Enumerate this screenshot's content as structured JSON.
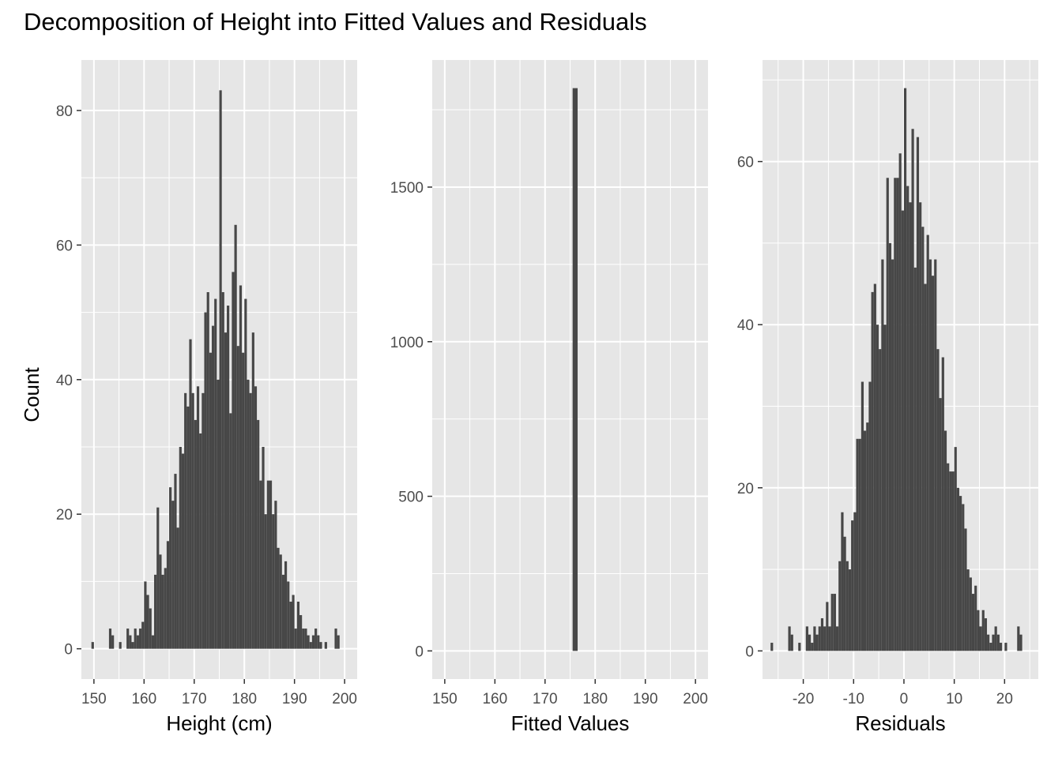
{
  "title": "Decomposition of Height into Fitted Values and Residuals",
  "colors": {
    "panel_background": "#e6e6e6",
    "grid_major": "#ffffff",
    "bar_fill": "#474747",
    "tick_text": "#4d4d4d"
  },
  "chart_data": [
    {
      "type": "bar",
      "subtype": "histogram",
      "xlabel": "Height (cm)",
      "ylabel": "Count",
      "xlim": [
        147.5,
        202.5
      ],
      "ylim": [
        -4.5,
        87.5
      ],
      "xticks": [
        150,
        160,
        170,
        180,
        190,
        200
      ],
      "yticks": [
        0,
        20,
        40,
        60,
        80
      ],
      "bin_width": 0.5,
      "bins": [
        [
          149.5,
          1
        ],
        [
          153.0,
          3
        ],
        [
          153.5,
          2
        ],
        [
          155.0,
          1
        ],
        [
          156.5,
          3
        ],
        [
          157.0,
          2
        ],
        [
          157.5,
          1
        ],
        [
          158.0,
          3
        ],
        [
          158.5,
          2
        ],
        [
          159.0,
          3
        ],
        [
          159.5,
          4
        ],
        [
          160.0,
          10
        ],
        [
          160.5,
          8
        ],
        [
          161.0,
          6
        ],
        [
          161.5,
          2
        ],
        [
          162.0,
          11
        ],
        [
          162.5,
          21
        ],
        [
          163.0,
          14
        ],
        [
          163.5,
          11
        ],
        [
          164.0,
          12
        ],
        [
          164.5,
          16
        ],
        [
          165.0,
          24
        ],
        [
          165.5,
          22
        ],
        [
          166.0,
          26
        ],
        [
          166.5,
          18
        ],
        [
          167.0,
          30
        ],
        [
          167.5,
          29
        ],
        [
          168.0,
          38
        ],
        [
          168.5,
          36
        ],
        [
          169.0,
          46
        ],
        [
          169.5,
          38
        ],
        [
          170.0,
          34
        ],
        [
          170.5,
          39
        ],
        [
          171.0,
          32
        ],
        [
          171.5,
          38
        ],
        [
          172.0,
          50
        ],
        [
          172.5,
          53
        ],
        [
          173.0,
          44
        ],
        [
          173.5,
          48
        ],
        [
          174.0,
          52
        ],
        [
          174.5,
          40
        ],
        [
          175.0,
          83
        ],
        [
          175.5,
          53
        ],
        [
          176.0,
          47
        ],
        [
          176.5,
          51
        ],
        [
          177.0,
          35
        ],
        [
          177.5,
          56
        ],
        [
          178.0,
          63
        ],
        [
          178.5,
          45
        ],
        [
          179.0,
          54
        ],
        [
          179.5,
          44
        ],
        [
          180.0,
          52
        ],
        [
          180.5,
          40
        ],
        [
          181.0,
          38
        ],
        [
          181.5,
          47
        ],
        [
          182.0,
          39
        ],
        [
          182.5,
          34
        ],
        [
          183.0,
          25
        ],
        [
          183.5,
          30
        ],
        [
          184.0,
          20
        ],
        [
          184.5,
          25
        ],
        [
          185.0,
          25
        ],
        [
          185.5,
          20
        ],
        [
          186.0,
          22
        ],
        [
          186.5,
          15
        ],
        [
          187.0,
          14
        ],
        [
          187.5,
          11
        ],
        [
          188.0,
          13
        ],
        [
          188.5,
          10
        ],
        [
          189.0,
          7
        ],
        [
          189.5,
          8
        ],
        [
          190.0,
          3
        ],
        [
          190.5,
          7
        ],
        [
          191.0,
          5
        ],
        [
          191.5,
          3
        ],
        [
          192.0,
          3
        ],
        [
          192.5,
          2
        ],
        [
          193.0,
          1
        ],
        [
          193.5,
          2
        ],
        [
          194.0,
          3
        ],
        [
          194.5,
          2
        ],
        [
          195.0,
          1
        ],
        [
          196.0,
          1
        ],
        [
          198.0,
          3
        ],
        [
          198.5,
          2
        ]
      ]
    },
    {
      "type": "bar",
      "subtype": "histogram",
      "xlabel": "Fitted Values",
      "ylabel": "",
      "xlim": [
        147.5,
        202.5
      ],
      "ylim": [
        -91,
        1911
      ],
      "xticks": [
        150,
        160,
        170,
        180,
        190,
        200
      ],
      "yticks": [
        0,
        500,
        1000,
        1500
      ],
      "bin_width": 1.0,
      "bins": [
        [
          175.5,
          1820
        ]
      ]
    },
    {
      "type": "bar",
      "subtype": "histogram",
      "xlabel": "Residuals",
      "ylabel": "",
      "xlim": [
        -28.1,
        26.7
      ],
      "ylim": [
        -3.45,
        72.45
      ],
      "xticks": [
        -20,
        -10,
        0,
        10,
        20
      ],
      "tick_labels": [
        "-20",
        "-10",
        "0",
        "10",
        "20"
      ],
      "yticks": [
        0,
        20,
        40,
        60
      ],
      "bin_width": 0.5,
      "bins": [
        [
          -26.5,
          1
        ],
        [
          -23.0,
          3
        ],
        [
          -22.5,
          2
        ],
        [
          -21.0,
          1
        ],
        [
          -19.5,
          3
        ],
        [
          -19.0,
          2
        ],
        [
          -18.5,
          1
        ],
        [
          -18.0,
          3
        ],
        [
          -17.5,
          2
        ],
        [
          -17.0,
          3
        ],
        [
          -16.5,
          4
        ],
        [
          -16.0,
          3
        ],
        [
          -15.5,
          6
        ],
        [
          -15.0,
          3
        ],
        [
          -14.5,
          7
        ],
        [
          -14.0,
          7
        ],
        [
          -13.5,
          3
        ],
        [
          -13.0,
          11
        ],
        [
          -12.5,
          17
        ],
        [
          -12.0,
          14
        ],
        [
          -11.5,
          11
        ],
        [
          -11.0,
          10
        ],
        [
          -10.5,
          16
        ],
        [
          -10.0,
          17
        ],
        [
          -9.5,
          26
        ],
        [
          -9.0,
          26
        ],
        [
          -8.5,
          33
        ],
        [
          -8.0,
          27
        ],
        [
          -7.5,
          28
        ],
        [
          -7.0,
          33
        ],
        [
          -6.5,
          44
        ],
        [
          -6.0,
          45
        ],
        [
          -5.5,
          40
        ],
        [
          -5.0,
          37
        ],
        [
          -4.5,
          48
        ],
        [
          -4.0,
          40
        ],
        [
          -3.5,
          58
        ],
        [
          -3.0,
          50
        ],
        [
          -2.5,
          48
        ],
        [
          -2.0,
          58
        ],
        [
          -1.5,
          58
        ],
        [
          -1.0,
          61
        ],
        [
          -0.5,
          54
        ],
        [
          0.0,
          69
        ],
        [
          0.5,
          57
        ],
        [
          1.0,
          55
        ],
        [
          1.5,
          64
        ],
        [
          2.0,
          47
        ],
        [
          2.5,
          63
        ],
        [
          3.0,
          55
        ],
        [
          3.5,
          52
        ],
        [
          4.0,
          45
        ],
        [
          4.5,
          51
        ],
        [
          5.0,
          48
        ],
        [
          5.5,
          46
        ],
        [
          6.0,
          48
        ],
        [
          6.5,
          37
        ],
        [
          7.0,
          31
        ],
        [
          7.5,
          36
        ],
        [
          8.0,
          27
        ],
        [
          8.5,
          23
        ],
        [
          9.0,
          22
        ],
        [
          9.5,
          22
        ],
        [
          10.0,
          25
        ],
        [
          10.5,
          20
        ],
        [
          11.0,
          19
        ],
        [
          11.5,
          18
        ],
        [
          12.0,
          15
        ],
        [
          12.5,
          10
        ],
        [
          13.0,
          9
        ],
        [
          13.5,
          7
        ],
        [
          14.0,
          8
        ],
        [
          14.5,
          5
        ],
        [
          15.0,
          3
        ],
        [
          15.5,
          5
        ],
        [
          16.0,
          4
        ],
        [
          16.5,
          2
        ],
        [
          17.0,
          1
        ],
        [
          17.5,
          2
        ],
        [
          18.0,
          3
        ],
        [
          18.5,
          2
        ],
        [
          19.0,
          1
        ],
        [
          20.0,
          1
        ],
        [
          22.5,
          3
        ],
        [
          23.0,
          2
        ]
      ]
    }
  ]
}
